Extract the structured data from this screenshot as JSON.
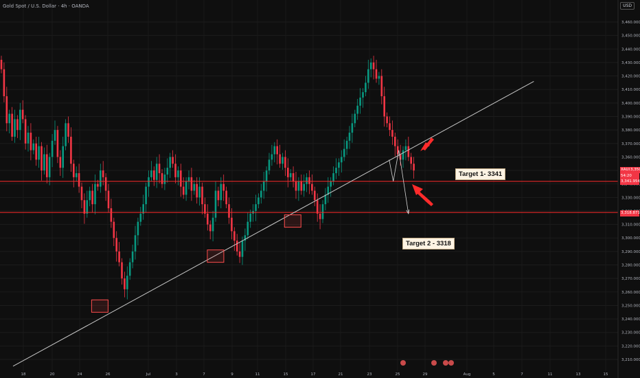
{
  "header": {
    "symbol_title": "Gold Spot / U.S. Dollar · 4h · OANDA",
    "currency_button": "USD"
  },
  "price_tags": {
    "symbol": "XAUUSD",
    "current_price": "3,350.540",
    "countdown": "54:20",
    "line1_price": "3,341.954",
    "line2_price": "3,318.871"
  },
  "annotations": {
    "target1": "Target 1- 3341",
    "target2": "Target 2 - 3318"
  },
  "colors": {
    "background": "#0f0f0f",
    "bull_candle": "#089981",
    "bear_candle": "#f23645",
    "level_line": "#ff2b2b",
    "trendline": "#c8c8c8",
    "box": "#ff4d4d"
  },
  "chart_data": {
    "type": "candlestick",
    "timeframe": "4h",
    "ylim": [
      3205,
      3470
    ],
    "y_ticks": [
      3210,
      3220,
      3230,
      3240,
      3250,
      3260,
      3270,
      3280,
      3290,
      3300,
      3310,
      3320,
      3330,
      3340,
      3350,
      3360,
      3370,
      3380,
      3390,
      3400,
      3410,
      3420,
      3430,
      3440,
      3450,
      3460
    ],
    "x_tick_labels": [
      "18",
      "20",
      "24",
      "26",
      "Jul",
      "3",
      "7",
      "9",
      "11",
      "15",
      "17",
      "21",
      "23",
      "25",
      "29",
      "Aug",
      "5",
      "7",
      "11",
      "13",
      "15"
    ],
    "horizontal_levels": [
      3341.954,
      3318.871
    ],
    "trendline": {
      "start": {
        "date": "Jun 18",
        "price": 3205
      },
      "end": {
        "date": "Aug 11",
        "price": 3416
      }
    },
    "projection_path": [
      {
        "date": "Jul 27",
        "price": 3358
      },
      {
        "date": "Jul 27",
        "price": 3342
      },
      {
        "date": "Jul 28",
        "price": 3365
      },
      {
        "date": "Jul 29",
        "price": 3318
      }
    ],
    "marked_lows": [
      {
        "date": "Jun 27",
        "low": 3247
      },
      {
        "date": "Jul 9",
        "low": 3284
      },
      {
        "date": "Jul 17",
        "low": 3310
      }
    ],
    "closes": [
      3425,
      3405,
      3385,
      3392,
      3375,
      3388,
      3380,
      3395,
      3388,
      3370,
      3378,
      3365,
      3370,
      3358,
      3368,
      3350,
      3362,
      3345,
      3360,
      3372,
      3380,
      3360,
      3352,
      3368,
      3385,
      3375,
      3355,
      3345,
      3348,
      3338,
      3328,
      3318,
      3328,
      3335,
      3325,
      3340,
      3338,
      3350,
      3345,
      3335,
      3322,
      3312,
      3300,
      3290,
      3282,
      3270,
      3262,
      3272,
      3282,
      3290,
      3302,
      3312,
      3318,
      3325,
      3338,
      3345,
      3350,
      3343,
      3355,
      3348,
      3340,
      3347,
      3352,
      3360,
      3355,
      3345,
      3350,
      3338,
      3332,
      3342,
      3345,
      3335,
      3340,
      3330,
      3338,
      3325,
      3318,
      3310,
      3305,
      3315,
      3335,
      3328,
      3340,
      3335,
      3325,
      3315,
      3305,
      3298,
      3290,
      3286,
      3298,
      3302,
      3312,
      3318,
      3320,
      3325,
      3330,
      3335,
      3342,
      3350,
      3358,
      3362,
      3368,
      3362,
      3355,
      3360,
      3352,
      3345,
      3348,
      3342,
      3335,
      3342,
      3335,
      3340,
      3345,
      3340,
      3335,
      3328,
      3318,
      3314,
      3325,
      3332,
      3338,
      3342,
      3348,
      3352,
      3356,
      3360,
      3366,
      3372,
      3378,
      3385,
      3392,
      3398,
      3404,
      3408,
      3415,
      3425,
      3430,
      3425,
      3418,
      3420,
      3405,
      3390,
      3385,
      3380,
      3375,
      3368,
      3362,
      3358,
      3365,
      3368,
      3360,
      3355,
      3350
    ]
  }
}
